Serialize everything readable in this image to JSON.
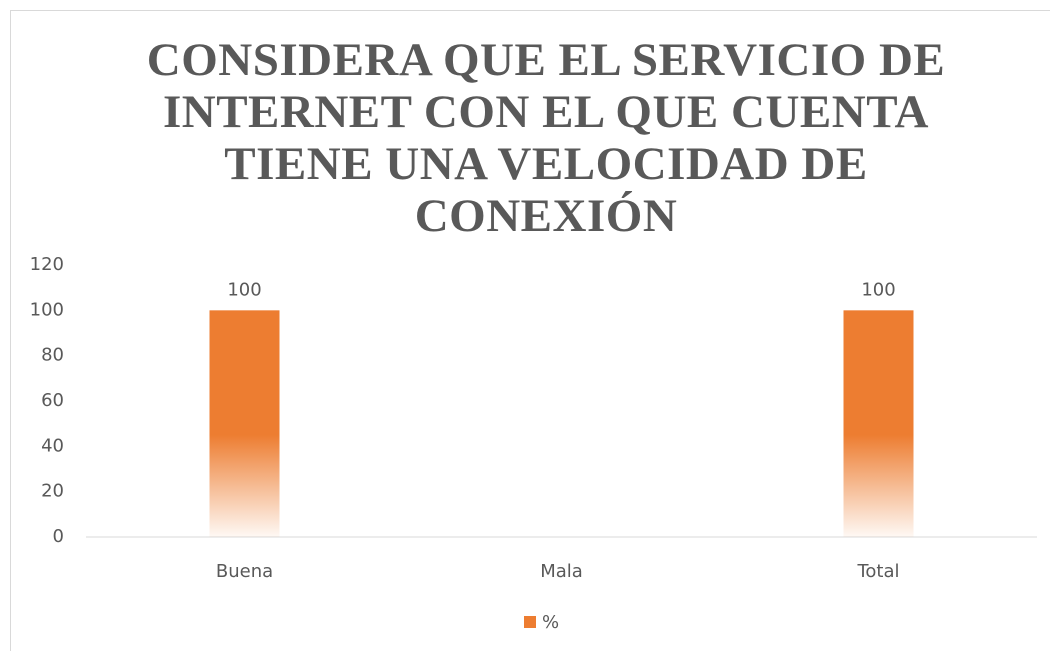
{
  "chart_data": {
    "type": "bar",
    "title": "CONSIDERA QUE EL SERVICIO DE INTERNET CON EL QUE CUENTA TIENE UNA VELOCIDAD DE CONEXIÓN",
    "categories": [
      "Buena",
      "Mala",
      "Total"
    ],
    "series": [
      {
        "name": "%",
        "color": "#ed7d31",
        "values": [
          100,
          null,
          100
        ]
      }
    ],
    "ylim": [
      0,
      120
    ],
    "yticks": [
      0,
      20,
      40,
      60,
      80,
      100,
      120
    ],
    "grid": false,
    "legend": "bottom"
  }
}
